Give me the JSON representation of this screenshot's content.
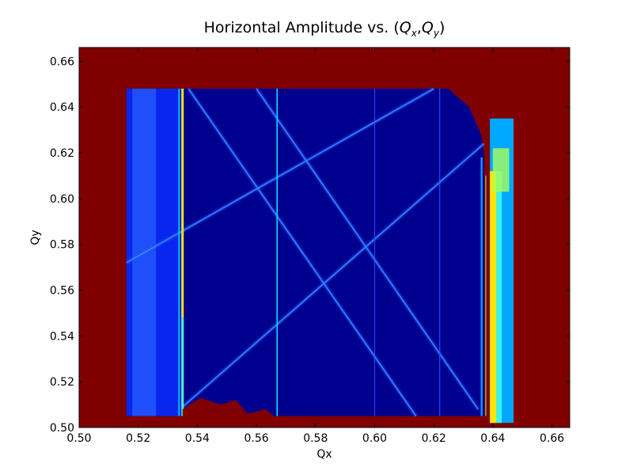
{
  "chart_data": {
    "type": "heatmap",
    "title": {
      "prefix": "Horizontal Amplitude vs. (",
      "x_symbol": "Q",
      "x_sub": "x",
      "separator": ",",
      "y_symbol": "Q",
      "y_sub": "y",
      "suffix": ")"
    },
    "xlabel": "Qx",
    "ylabel": "Qy",
    "xlim": [
      0.5,
      0.666
    ],
    "ylim": [
      0.5,
      0.666
    ],
    "xticks": [
      "0.50",
      "0.52",
      "0.54",
      "0.56",
      "0.58",
      "0.60",
      "0.62",
      "0.64",
      "0.66"
    ],
    "yticks": [
      "0.50",
      "0.52",
      "0.54",
      "0.56",
      "0.58",
      "0.60",
      "0.62",
      "0.64",
      "0.66"
    ],
    "colormap": "jet",
    "grid": false,
    "colors": {
      "unstable_region": "#800000",
      "background_low": "#00008f",
      "medium_blue": "#0a2dff",
      "high_band": "#ffe400",
      "cyan": "#00e0ff"
    },
    "regions": {
      "scan_area": {
        "qx": [
          0.516,
          0.637
        ],
        "qy": [
          0.505,
          0.648
        ]
      },
      "right_band": {
        "qx": [
          0.639,
          0.647
        ],
        "qy": [
          0.502,
          0.635
        ]
      }
    },
    "features": {
      "vertical_lines_qx": [
        0.535,
        0.567,
        0.6,
        0.622,
        0.637
      ],
      "diagonal_resonances": [
        {
          "from": [
            0.535,
            0.509
          ],
          "to": [
            0.637,
            0.624
          ]
        },
        {
          "from": [
            0.537,
            0.648
          ],
          "to": [
            0.614,
            0.505
          ]
        },
        {
          "from": [
            0.516,
            0.572
          ],
          "to": [
            0.62,
            0.648
          ]
        },
        {
          "from": [
            0.56,
            0.648
          ],
          "to": [
            0.635,
            0.508
          ]
        }
      ]
    }
  }
}
